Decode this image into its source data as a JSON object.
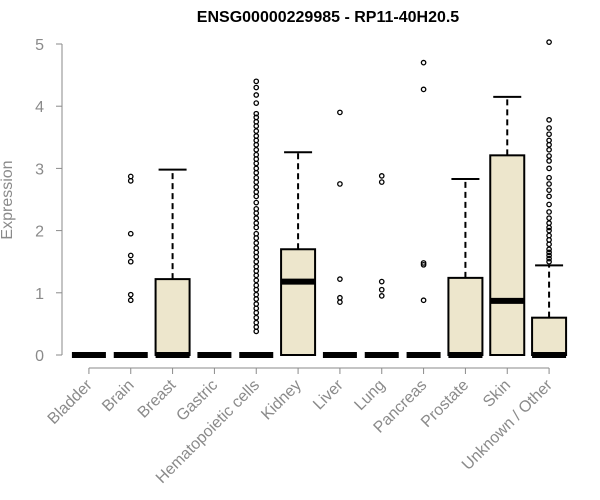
{
  "chart_data": {
    "type": "box",
    "title": "ENSG00000229985 - RP11-40H20.5",
    "xlabel": "",
    "ylabel": "Expression",
    "ylim": [
      0,
      5
    ],
    "yticks": [
      0,
      1,
      2,
      3,
      4,
      5
    ],
    "grid": false,
    "box_color": "#ede6cc",
    "outline_color": "#000000",
    "categories": [
      "Bladder",
      "Brain",
      "Breast",
      "Gastric",
      "Hematopoietic cells",
      "Kidney",
      "Liver",
      "Lung",
      "Pancreas",
      "Prostate",
      "Skin",
      "Unknown / Other"
    ],
    "boxes": [
      {
        "q1": 0,
        "median": 0,
        "q3": 0,
        "whisker_low": 0,
        "whisker_high": 0,
        "outliers": []
      },
      {
        "q1": 0,
        "median": 0,
        "q3": 0,
        "whisker_low": 0,
        "whisker_high": 0,
        "outliers": [
          0.88,
          0.97,
          1.5,
          1.6,
          1.95,
          2.8,
          2.87
        ]
      },
      {
        "q1": 0,
        "median": 0,
        "q3": 1.22,
        "whisker_low": 0,
        "whisker_high": 2.98,
        "outliers": []
      },
      {
        "q1": 0,
        "median": 0,
        "q3": 0,
        "whisker_low": 0,
        "whisker_high": 0,
        "outliers": []
      },
      {
        "q1": 0,
        "median": 0,
        "q3": 0,
        "whisker_low": 0,
        "whisker_high": 0,
        "outliers": [
          0.38,
          0.45,
          0.52,
          0.6,
          0.68,
          0.75,
          0.82,
          0.9,
          0.97,
          1.05,
          1.12,
          1.2,
          1.28,
          1.35,
          1.42,
          1.5,
          1.58,
          1.65,
          1.72,
          1.8,
          1.88,
          1.95,
          2.05,
          2.12,
          2.2,
          2.28,
          2.35,
          2.45,
          2.55,
          2.62,
          2.7,
          2.78,
          2.85,
          2.93,
          3.0,
          3.08,
          3.15,
          3.22,
          3.3,
          3.38,
          3.45,
          3.52,
          3.6,
          3.68,
          3.75,
          3.82,
          3.88,
          4.05,
          4.18,
          4.3,
          4.4
        ]
      },
      {
        "q1": 0,
        "median": 1.18,
        "q3": 1.7,
        "whisker_low": 0,
        "whisker_high": 3.26,
        "outliers": []
      },
      {
        "q1": 0,
        "median": 0,
        "q3": 0,
        "whisker_low": 0,
        "whisker_high": 0,
        "outliers": [
          0.85,
          0.92,
          1.22,
          2.75,
          3.9
        ]
      },
      {
        "q1": 0,
        "median": 0,
        "q3": 0,
        "whisker_low": 0,
        "whisker_high": 0,
        "outliers": [
          0.95,
          1.05,
          1.18,
          2.78,
          2.88
        ]
      },
      {
        "q1": 0,
        "median": 0,
        "q3": 0,
        "whisker_low": 0,
        "whisker_high": 0,
        "outliers": [
          0.88,
          1.45,
          1.48,
          4.27,
          4.7
        ]
      },
      {
        "q1": 0,
        "median": 0,
        "q3": 1.24,
        "whisker_low": 0,
        "whisker_high": 2.83,
        "outliers": []
      },
      {
        "q1": 0,
        "median": 0.87,
        "q3": 3.21,
        "whisker_low": 0,
        "whisker_high": 4.15,
        "outliers": []
      },
      {
        "q1": 0,
        "median": 0,
        "q3": 0.6,
        "whisker_low": 0,
        "whisker_high": 1.44,
        "outliers": [
          1.5,
          1.55,
          1.6,
          1.65,
          1.7,
          1.78,
          1.85,
          1.92,
          2.0,
          2.05,
          2.12,
          2.2,
          2.3,
          2.42,
          2.55,
          2.65,
          2.75,
          2.85,
          3.0,
          3.12,
          3.2,
          3.3,
          3.38,
          3.45,
          3.55,
          3.65,
          3.78,
          5.03
        ]
      }
    ]
  }
}
